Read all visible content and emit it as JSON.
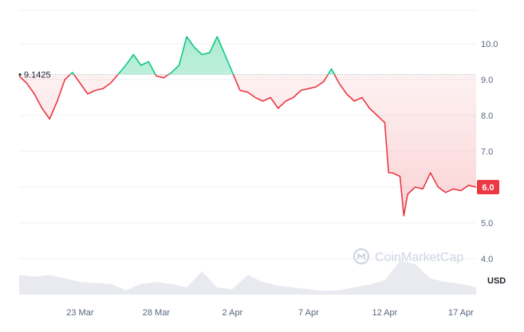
{
  "watermark": "CoinMarketCap",
  "colors": {
    "up": "#16c784",
    "down": "#ea3943",
    "grid": "#eff2f5",
    "volume": "#e6e8ee",
    "axis_text": "#58667e"
  },
  "chart_data": {
    "type": "line",
    "ylim": [
      3.0,
      11.0
    ],
    "y_ticks": [
      4.0,
      5.0,
      6.0,
      7.0,
      8.0,
      9.0,
      10.0
    ],
    "y_tick_labels": [
      "4.0",
      "5.0",
      "6.0",
      "7.0",
      "8.0",
      "9.0",
      "10.0"
    ],
    "y_unit": "USD",
    "x_range": [
      "2024-03-19",
      "2024-04-18"
    ],
    "x_ticks": [
      "2024-03-23",
      "2024-03-28",
      "2024-04-02",
      "2024-04-07",
      "2024-04-12",
      "2024-04-17"
    ],
    "x_tick_labels": [
      "23 Mar",
      "28 Mar",
      "2 Apr",
      "7 Apr",
      "12 Apr",
      "17 Apr"
    ],
    "reference_value": 9.1425,
    "reference_label": "9.1425",
    "current_value": 6.0,
    "current_label": "6.0",
    "series": [
      {
        "points": [
          [
            "2024-03-19",
            9.1
          ],
          [
            "2024-03-19T12:00",
            8.9
          ],
          [
            "2024-03-20",
            8.6
          ],
          [
            "2024-03-20T12:00",
            8.2
          ],
          [
            "2024-03-21",
            7.9
          ],
          [
            "2024-03-21T12:00",
            8.4
          ],
          [
            "2024-03-22",
            9.0
          ],
          [
            "2024-03-22T12:00",
            9.2
          ],
          [
            "2024-03-23",
            8.9
          ],
          [
            "2024-03-23T12:00",
            8.6
          ],
          [
            "2024-03-24",
            8.7
          ],
          [
            "2024-03-24T12:00",
            8.75
          ],
          [
            "2024-03-25",
            8.9
          ],
          [
            "2024-03-25T12:00",
            9.15
          ],
          [
            "2024-03-26",
            9.4
          ],
          [
            "2024-03-26T12:00",
            9.7
          ],
          [
            "2024-03-27",
            9.4
          ],
          [
            "2024-03-27T12:00",
            9.5
          ],
          [
            "2024-03-28",
            9.1
          ],
          [
            "2024-03-28T12:00",
            9.05
          ],
          [
            "2024-03-29",
            9.2
          ],
          [
            "2024-03-29T12:00",
            9.4
          ],
          [
            "2024-03-30",
            10.2
          ],
          [
            "2024-03-30T12:00",
            9.9
          ],
          [
            "2024-03-31",
            9.7
          ],
          [
            "2024-03-31T12:00",
            9.75
          ],
          [
            "2024-04-01",
            10.2
          ],
          [
            "2024-04-01T12:00",
            9.7
          ],
          [
            "2024-04-02",
            9.2
          ],
          [
            "2024-04-02T12:00",
            8.7
          ],
          [
            "2024-04-03",
            8.65
          ],
          [
            "2024-04-03T12:00",
            8.5
          ],
          [
            "2024-04-04",
            8.4
          ],
          [
            "2024-04-04T12:00",
            8.5
          ],
          [
            "2024-04-05",
            8.2
          ],
          [
            "2024-04-05T12:00",
            8.4
          ],
          [
            "2024-04-06",
            8.5
          ],
          [
            "2024-04-06T12:00",
            8.7
          ],
          [
            "2024-04-07",
            8.75
          ],
          [
            "2024-04-07T12:00",
            8.8
          ],
          [
            "2024-04-08",
            8.95
          ],
          [
            "2024-04-08T12:00",
            9.3
          ],
          [
            "2024-04-09",
            8.9
          ],
          [
            "2024-04-09T12:00",
            8.6
          ],
          [
            "2024-04-10",
            8.4
          ],
          [
            "2024-04-10T12:00",
            8.5
          ],
          [
            "2024-04-11",
            8.2
          ],
          [
            "2024-04-11T12:00",
            8.0
          ],
          [
            "2024-04-12",
            7.8
          ],
          [
            "2024-04-12T06:00",
            6.4
          ],
          [
            "2024-04-12T12:00",
            6.4
          ],
          [
            "2024-04-13",
            6.3
          ],
          [
            "2024-04-13T06:00",
            5.2
          ],
          [
            "2024-04-13T12:00",
            5.8
          ],
          [
            "2024-04-14",
            6.0
          ],
          [
            "2024-04-14T12:00",
            5.95
          ],
          [
            "2024-04-15",
            6.4
          ],
          [
            "2024-04-15T12:00",
            6.0
          ],
          [
            "2024-04-16",
            5.85
          ],
          [
            "2024-04-16T12:00",
            5.95
          ],
          [
            "2024-04-17",
            5.9
          ],
          [
            "2024-04-17T12:00",
            6.05
          ],
          [
            "2024-04-18",
            6.0
          ]
        ]
      }
    ],
    "volume": [
      [
        "2024-03-19",
        0.55
      ],
      [
        "2024-03-20",
        0.5
      ],
      [
        "2024-03-21",
        0.55
      ],
      [
        "2024-03-22",
        0.45
      ],
      [
        "2024-03-23",
        0.35
      ],
      [
        "2024-03-24",
        0.32
      ],
      [
        "2024-03-25",
        0.3
      ],
      [
        "2024-03-26",
        0.12
      ],
      [
        "2024-03-27",
        0.3
      ],
      [
        "2024-03-28",
        0.35
      ],
      [
        "2024-03-29",
        0.3
      ],
      [
        "2024-03-30",
        0.2
      ],
      [
        "2024-03-31",
        0.65
      ],
      [
        "2024-04-01",
        0.2
      ],
      [
        "2024-04-02",
        0.15
      ],
      [
        "2024-04-03",
        0.55
      ],
      [
        "2024-04-04",
        0.35
      ],
      [
        "2024-04-05",
        0.25
      ],
      [
        "2024-04-06",
        0.2
      ],
      [
        "2024-04-07",
        0.15
      ],
      [
        "2024-04-08",
        0.1
      ],
      [
        "2024-04-09",
        0.12
      ],
      [
        "2024-04-10",
        0.2
      ],
      [
        "2024-04-11",
        0.28
      ],
      [
        "2024-04-12",
        0.4
      ],
      [
        "2024-04-13",
        0.95
      ],
      [
        "2024-04-14",
        0.85
      ],
      [
        "2024-04-15",
        0.45
      ],
      [
        "2024-04-16",
        0.35
      ],
      [
        "2024-04-17",
        0.3
      ],
      [
        "2024-04-18",
        0.2
      ]
    ]
  }
}
